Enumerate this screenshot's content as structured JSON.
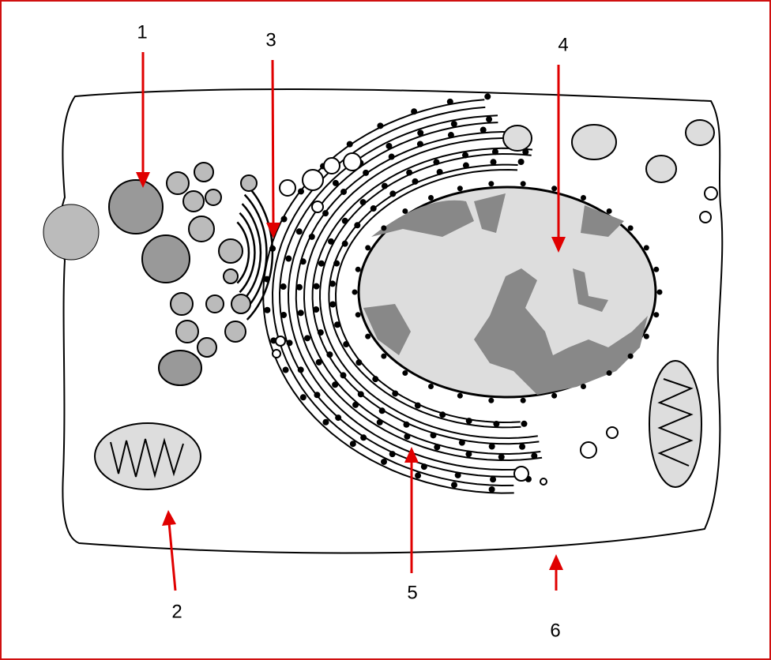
{
  "labels": [
    "1",
    "2",
    "3",
    "4",
    "5",
    "6"
  ]
}
